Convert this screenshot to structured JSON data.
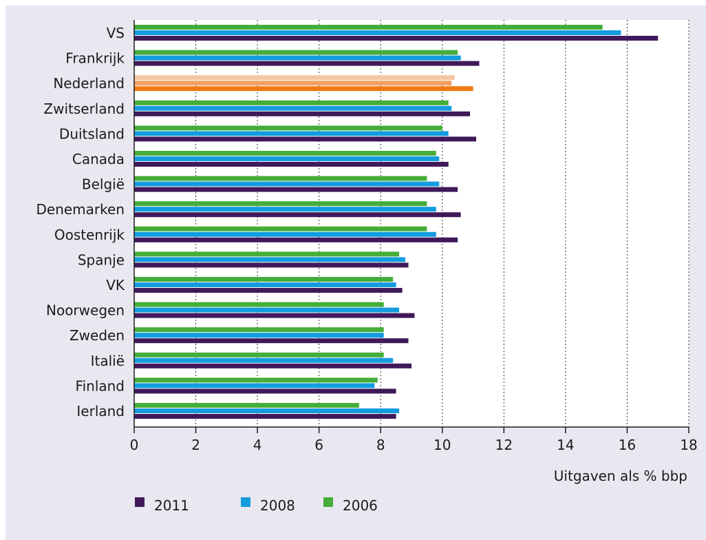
{
  "chart_data": {
    "type": "bar",
    "orientation": "horizontal",
    "categories": [
      "VS",
      "Frankrijk",
      "Nederland",
      "Zwitserland",
      "Duitsland",
      "Canada",
      "België",
      "Denemarken",
      "Oostenrijk",
      "Spanje",
      "VK",
      "Noorwegen",
      "Zweden",
      "Italië",
      "Finland",
      "Ierland"
    ],
    "series": [
      {
        "name": "2006",
        "color": "#45ad3a",
        "values": [
          15.2,
          10.5,
          10.4,
          10.2,
          10.0,
          9.8,
          9.5,
          9.5,
          9.5,
          8.6,
          8.4,
          8.1,
          8.1,
          8.1,
          7.9,
          7.3
        ]
      },
      {
        "name": "2008",
        "color": "#139cde",
        "values": [
          15.8,
          10.6,
          10.3,
          10.3,
          10.2,
          9.9,
          9.9,
          9.8,
          9.8,
          8.8,
          8.5,
          8.6,
          8.1,
          8.4,
          7.8,
          8.6
        ]
      },
      {
        "name": "2011",
        "color": "#40195a",
        "values": [
          17.0,
          11.2,
          11.0,
          10.9,
          11.1,
          10.2,
          10.5,
          10.6,
          10.5,
          8.9,
          8.7,
          9.1,
          8.9,
          9.0,
          8.5,
          8.5
        ]
      }
    ],
    "highlight": {
      "category": "Nederland",
      "colors": {
        "2006": "#f7c6a0",
        "2008": "#f2a164",
        "2011": "#f07a14"
      }
    },
    "xlabel": "Uitgaven als % bbp",
    "xlim": [
      0,
      18
    ],
    "xticks": [
      0,
      2,
      4,
      6,
      8,
      10,
      12,
      14,
      16,
      18
    ],
    "grid": "vertical dashed",
    "legend": {
      "position": "bottom-left",
      "order": [
        "2011",
        "2008",
        "2006"
      ]
    }
  },
  "colors": {
    "panel_background": "#e9e8f0",
    "plot_background": "#ffffff",
    "gridline": "#333333"
  }
}
